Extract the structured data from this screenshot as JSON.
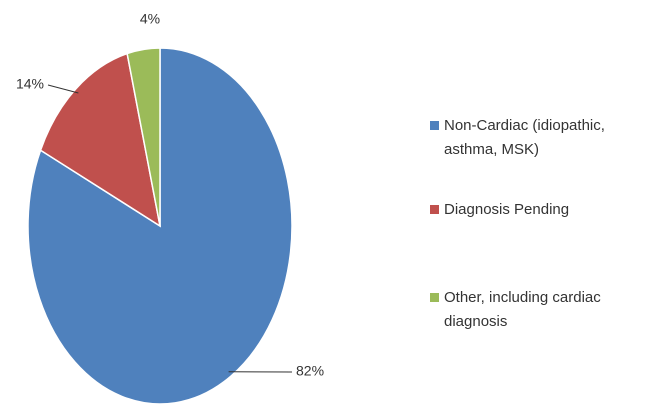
{
  "chart_data": {
    "type": "pie",
    "categories": [
      "Non-Cardiac (idiopathic, asthma, MSK)",
      "Diagnosis Pending",
      "Other, including cardiac diagnosis"
    ],
    "values": [
      82,
      14,
      4
    ],
    "value_labels": [
      "82%",
      "14%",
      "4%"
    ],
    "colors": [
      "#4f81bd",
      "#c0504d",
      "#9bbb59"
    ]
  }
}
